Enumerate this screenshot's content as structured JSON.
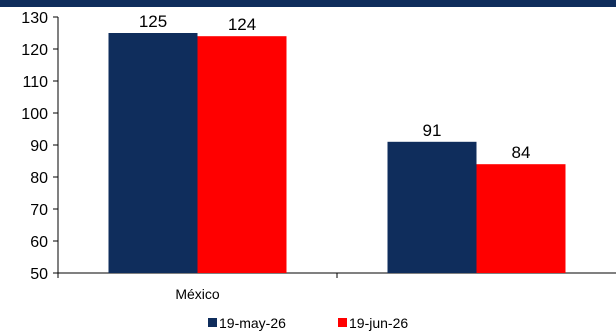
{
  "chart_data": {
    "type": "bar",
    "categories": [
      "México",
      ""
    ],
    "series": [
      {
        "name": "19-may-26",
        "values": [
          125,
          91
        ],
        "color": "#0f2d5c"
      },
      {
        "name": "19-jun-26",
        "values": [
          124,
          84
        ],
        "color": "#ff0000"
      }
    ],
    "y_ticks": [
      50,
      60,
      70,
      80,
      90,
      100,
      110,
      120,
      130
    ],
    "ylim": [
      50,
      130
    ],
    "data_labels": true,
    "grid": false,
    "legend_position": "bottom",
    "title": "",
    "xlabel": "",
    "ylabel": ""
  },
  "colors": {
    "top_band": "#0f2d5c"
  }
}
